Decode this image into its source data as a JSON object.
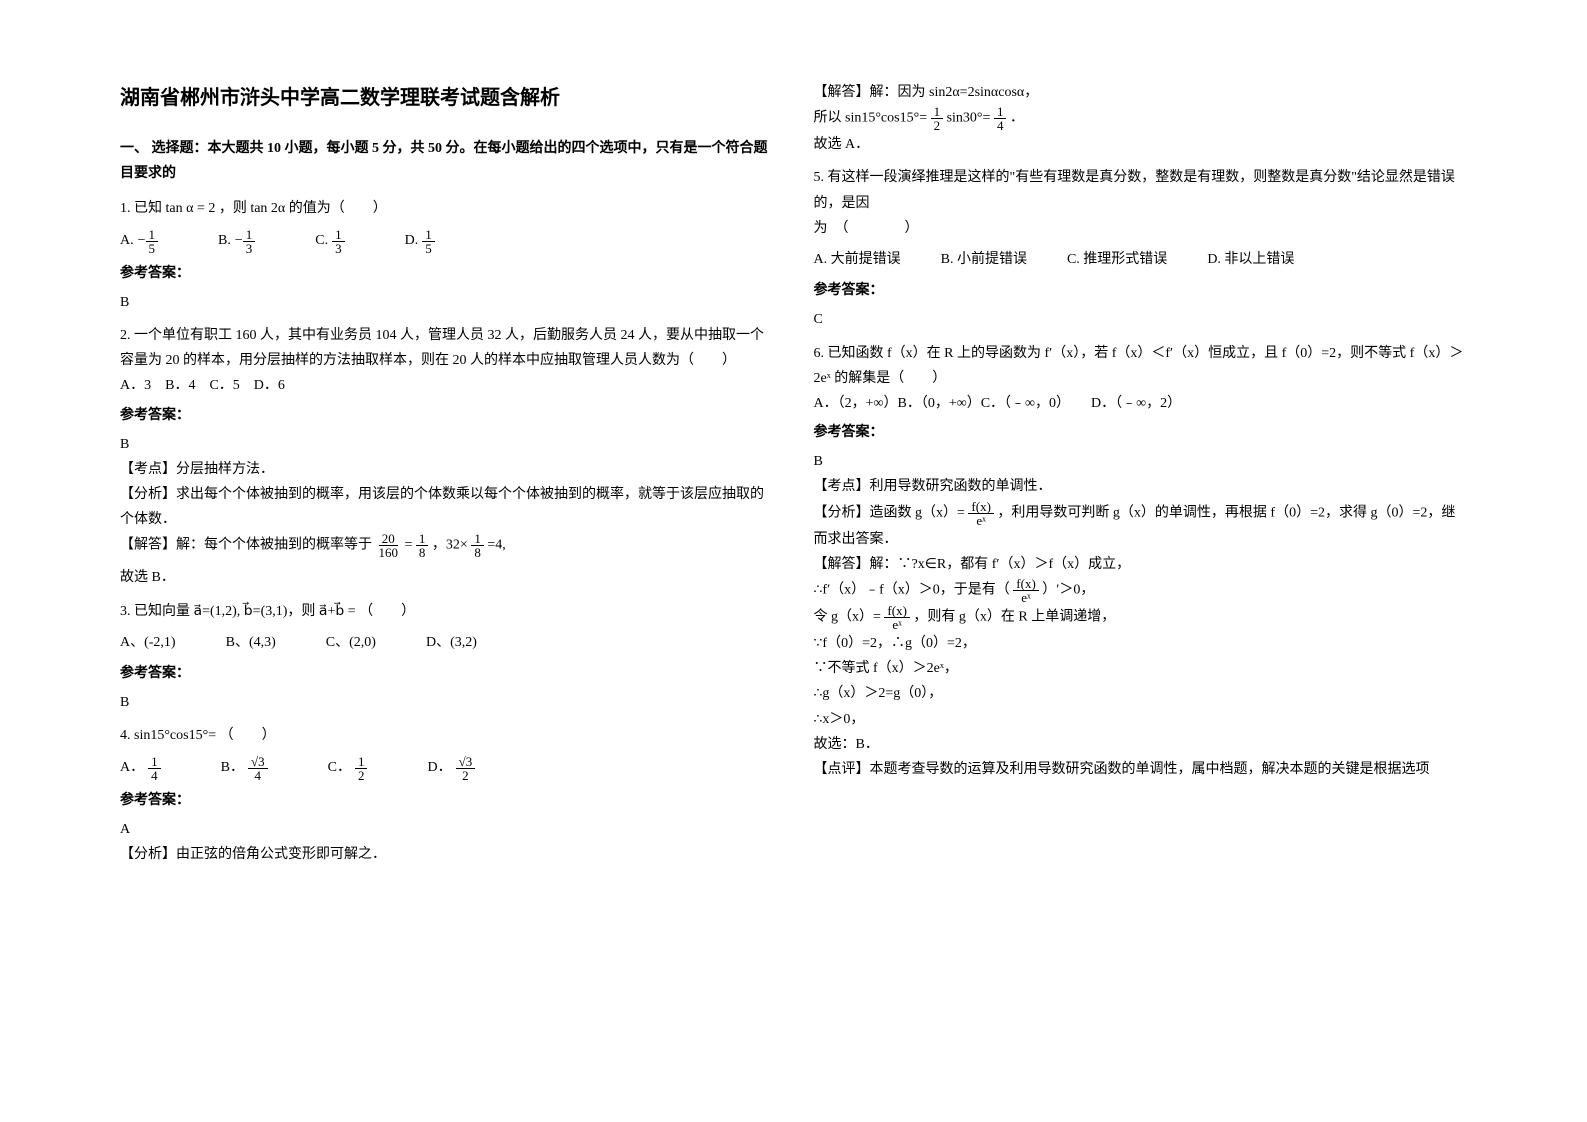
{
  "title": "湖南省郴州市浒头中学高二数学理联考试题含解析",
  "section1": "一、 选择题：本大题共 10 小题，每小题 5 分，共 50 分。在每小题给出的四个选项中，只有是一个符合题目要求的",
  "q1": {
    "stem": "1. 已知 tan α = 2 ，则 tan 2α 的值为（　　）",
    "optA": "A.",
    "optB": "B.",
    "optC": "C.",
    "optD": "D.",
    "answerLabel": "参考答案：",
    "answer": "B"
  },
  "q2": {
    "stem1": "2. 一个单位有职工 160 人，其中有业务员 104 人，管理人员 32 人，后勤服务人员 24 人，要从中抽取一个容量为 20 的样本，用分层抽样的方法抽取样本，则在 20 人的样本中应抽取管理人员人数为（　　）",
    "opts": "A．3　B．4　C．5　D．6",
    "answerLabel": "参考答案：",
    "answer": "B",
    "point": "【考点】分层抽样方法．",
    "analysis": "【分析】求出每个个体被抽到的概率，用该层的个体数乘以每个个体被抽到的概率，就等于该层应抽取的个体数．",
    "solve1": "【解答】解：每个个体被抽到的概率等于",
    "solve2": "=4,",
    "solve3": "故选 B．"
  },
  "q3": {
    "stem": "3. 已知向量 a⃗=(1,2), b⃗=(3,1)，则 a⃗+b⃗ = （　　）",
    "a": "A、(-2,1)",
    "b": "B、(4,3)",
    "c": "C、(2,0)",
    "d": "D、(3,2)",
    "answerLabel": "参考答案：",
    "answer": "B"
  },
  "q4": {
    "stem": "4. sin15°cos15°= （　　）",
    "a": "A．",
    "b": "B．",
    "c": "C．",
    "d": "D．",
    "answerLabel": "参考答案：",
    "answer": "A",
    "analysis": "【分析】由正弦的倍角公式变形即可解之．"
  },
  "q4r": {
    "solve1": "【解答】解：因为 sin2α=2sinαcosα，",
    "solve2a": "所以 sin15°cos15°=",
    "solve2b": "sin30°=",
    "solve2c": "．",
    "solve3": "故选 A．"
  },
  "q5": {
    "stem": "5. 有这样一段演绎推理是这样的\"有些有理数是真分数，整数是有理数，则整数是真分数\"结论显然是错误的，是因",
    "stem2": "为　（　　　　）",
    "a": "A. 大前提错误",
    "b": "B. 小前提错误",
    "c": "C. 推理形式错误",
    "d": "D. 非以上错误",
    "answerLabel": "参考答案：",
    "answer": "C"
  },
  "q6": {
    "stem": "6. 已知函数 f（x）在 R 上的导函数为 f′（x），若 f（x）＜f′（x）恒成立，且 f（0）=2，则不等式 f（x）＞2eˣ 的解集是（　　）",
    "opts": "A．（2，+∞）B．（0，+∞）C．（﹣∞，0）　　D．（﹣∞，2）",
    "answerLabel": "参考答案：",
    "answer": "B",
    "point": "【考点】利用导数研究函数的单调性．",
    "analysis1": "【分析】造函数 g（x）=",
    "analysis2": "，利用导数可判断 g（x）的单调性，再根据 f（0）=2，求得 g（0）=2，继而求出答案．",
    "solve1": "【解答】解：∵?x∈R，都有 f′（x）＞f（x）成立，",
    "solve2a": "∴f′（x）﹣f（x）＞0，于是有（",
    "solve2b": "）′＞0，",
    "solve3a": "令 g（x）=",
    "solve3b": "，则有 g（x）在 R 上单调递增，",
    "solve4": "∵f（0）=2，∴g（0）=2，",
    "solve5": "∵不等式 f（x）＞2eˣ，",
    "solve6": "∴g（x）＞2=g（0），",
    "solve7": "∴x＞0，",
    "solve8": "故选：B．",
    "comment": "【点评】本题考查导数的运算及利用导数研究函数的单调性，属中档题，解决本题的关键是根据选项"
  },
  "fracData": {
    "n1": "1",
    "d3": "3",
    "d5": "5",
    "n20": "20",
    "d160": "160",
    "d8": "8",
    "n_32x": "32×",
    "sqrt3": "√3",
    "d4": "4",
    "d2": "2",
    "fx": "f(x)",
    "ex": "eˣ"
  }
}
